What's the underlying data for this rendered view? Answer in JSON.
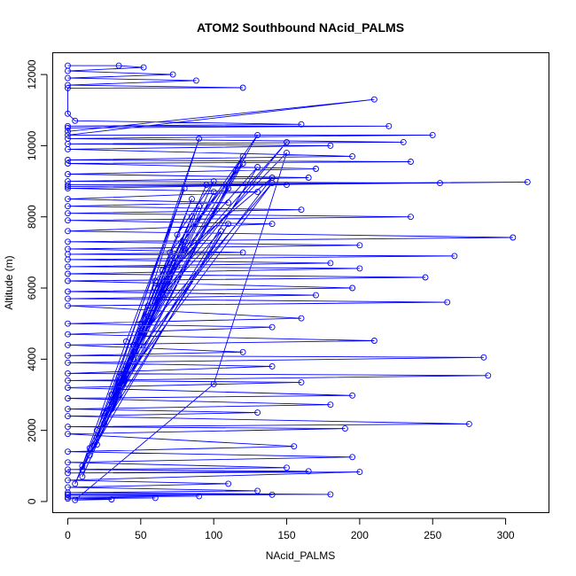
{
  "chart_data": {
    "type": "line",
    "title": "ATOM2 Southbound NAcid_PALMS",
    "xlabel": "NAcid_PALMS",
    "ylabel": "Altitude (m)",
    "xlim": [
      -10,
      330
    ],
    "ylim": [
      -300,
      12600
    ],
    "xticks": [
      0,
      50,
      100,
      150,
      200,
      250,
      300
    ],
    "yticks": [
      0,
      2000,
      4000,
      6000,
      8000,
      10000,
      12000
    ],
    "grid": false,
    "legend": "none",
    "line_style": "line with open circle markers",
    "color": "#0000ff",
    "series": [
      {
        "values": [
          [
            0,
            12250
          ],
          [
            35,
            12250
          ],
          [
            52,
            12200
          ],
          [
            0,
            12100
          ],
          [
            72,
            12000
          ],
          [
            0,
            11900
          ],
          [
            88,
            11830
          ],
          [
            0,
            11700
          ],
          [
            120,
            11630
          ],
          [
            0,
            11620
          ],
          [
            0,
            10900
          ],
          [
            5,
            10700
          ],
          [
            160,
            10600
          ],
          [
            0,
            10550
          ],
          [
            220,
            10550
          ],
          [
            0,
            10500
          ],
          [
            0,
            10400
          ],
          [
            210,
            11300
          ],
          [
            0,
            10300
          ],
          [
            250,
            10300
          ],
          [
            0,
            10200
          ],
          [
            230,
            10100
          ],
          [
            0,
            10050
          ],
          [
            180,
            10000
          ],
          [
            0,
            9900
          ],
          [
            195,
            9700
          ],
          [
            0,
            9600
          ],
          [
            235,
            9550
          ],
          [
            0,
            9500
          ],
          [
            170,
            9350
          ],
          [
            0,
            9200
          ],
          [
            165,
            9100
          ],
          [
            0,
            9000
          ],
          [
            255,
            8950
          ],
          [
            0,
            8900
          ],
          [
            315,
            8980
          ],
          [
            0,
            8850
          ],
          [
            150,
            8900
          ],
          [
            0,
            8800
          ],
          [
            130,
            8700
          ],
          [
            0,
            8500
          ],
          [
            110,
            8400
          ],
          [
            0,
            8300
          ],
          [
            160,
            8200
          ],
          [
            0,
            8100
          ],
          [
            235,
            8000
          ],
          [
            0,
            7900
          ],
          [
            140,
            7800
          ],
          [
            0,
            7600
          ],
          [
            305,
            7420
          ],
          [
            0,
            7300
          ],
          [
            200,
            7200
          ],
          [
            0,
            7100
          ],
          [
            120,
            7000
          ],
          [
            0,
            6950
          ],
          [
            265,
            6900
          ],
          [
            0,
            6800
          ],
          [
            180,
            6700
          ],
          [
            0,
            6600
          ],
          [
            200,
            6550
          ],
          [
            0,
            6400
          ],
          [
            245,
            6300
          ],
          [
            0,
            6200
          ],
          [
            195,
            6000
          ],
          [
            0,
            5900
          ],
          [
            170,
            5800
          ],
          [
            0,
            5700
          ],
          [
            260,
            5600
          ],
          [
            0,
            5500
          ],
          [
            160,
            5150
          ],
          [
            0,
            5000
          ],
          [
            140,
            4900
          ],
          [
            0,
            4700
          ],
          [
            210,
            4520
          ],
          [
            0,
            4400
          ],
          [
            120,
            4200
          ],
          [
            0,
            4100
          ],
          [
            285,
            4050
          ],
          [
            0,
            3900
          ],
          [
            140,
            3800
          ],
          [
            0,
            3600
          ],
          [
            288,
            3540
          ],
          [
            0,
            3400
          ],
          [
            160,
            3350
          ],
          [
            0,
            3200
          ],
          [
            195,
            2980
          ],
          [
            0,
            2900
          ],
          [
            180,
            2720
          ],
          [
            0,
            2600
          ],
          [
            130,
            2500
          ],
          [
            0,
            2400
          ],
          [
            275,
            2180
          ],
          [
            0,
            2100
          ],
          [
            190,
            2050
          ],
          [
            0,
            1900
          ],
          [
            155,
            1550
          ],
          [
            0,
            1400
          ],
          [
            195,
            1250
          ],
          [
            0,
            1100
          ],
          [
            150,
            950
          ],
          [
            0,
            900
          ],
          [
            165,
            850
          ],
          [
            0,
            800
          ],
          [
            200,
            830
          ],
          [
            0,
            600
          ],
          [
            110,
            500
          ],
          [
            0,
            400
          ],
          [
            130,
            300
          ],
          [
            0,
            250
          ],
          [
            180,
            200
          ],
          [
            0,
            200
          ],
          [
            140,
            190
          ],
          [
            0,
            180
          ],
          [
            90,
            150
          ],
          [
            0,
            120
          ],
          [
            60,
            100
          ],
          [
            0,
            80
          ],
          [
            30,
            60
          ],
          [
            5,
            40
          ],
          [
            100,
            3300
          ],
          [
            150,
            9800
          ],
          [
            60,
            6000
          ],
          [
            20,
            2000
          ],
          [
            80,
            8800
          ],
          [
            40,
            4500
          ],
          [
            10,
            1000
          ],
          [
            70,
            7000
          ],
          [
            120,
            9500
          ],
          [
            30,
            3000
          ],
          [
            90,
            10200
          ],
          [
            50,
            5000
          ],
          [
            15,
            1500
          ],
          [
            110,
            7800
          ],
          [
            25,
            2500
          ],
          [
            65,
            6500
          ],
          [
            140,
            9100
          ],
          [
            35,
            3500
          ],
          [
            85,
            8500
          ],
          [
            45,
            4200
          ],
          [
            55,
            5500
          ],
          [
            5,
            500
          ],
          [
            100,
            9000
          ],
          [
            75,
            7500
          ],
          [
            20,
            1800
          ],
          [
            60,
            6200
          ],
          [
            130,
            10300
          ],
          [
            40,
            3800
          ],
          [
            95,
            8900
          ],
          [
            30,
            2800
          ],
          [
            50,
            4800
          ],
          [
            10,
            900
          ],
          [
            115,
            9300
          ],
          [
            70,
            6800
          ],
          [
            25,
            2200
          ],
          [
            85,
            8000
          ],
          [
            45,
            4400
          ],
          [
            140,
            8950
          ],
          [
            35,
            3200
          ],
          [
            65,
            5800
          ],
          [
            105,
            7600
          ],
          [
            15,
            1300
          ],
          [
            80,
            7300
          ],
          [
            55,
            5200
          ],
          [
            120,
            9700
          ],
          [
            30,
            2600
          ],
          [
            90,
            8300
          ],
          [
            40,
            3600
          ],
          [
            20,
            1600
          ],
          [
            70,
            6400
          ],
          [
            150,
            10100
          ],
          [
            60,
            5600
          ],
          [
            100,
            8700
          ],
          [
            25,
            2400
          ],
          [
            45,
            4000
          ],
          [
            80,
            7100
          ],
          [
            130,
            9400
          ],
          [
            35,
            3000
          ],
          [
            10,
            700
          ],
          [
            75,
            6600
          ],
          [
            110,
            8800
          ]
        ]
      }
    ]
  }
}
